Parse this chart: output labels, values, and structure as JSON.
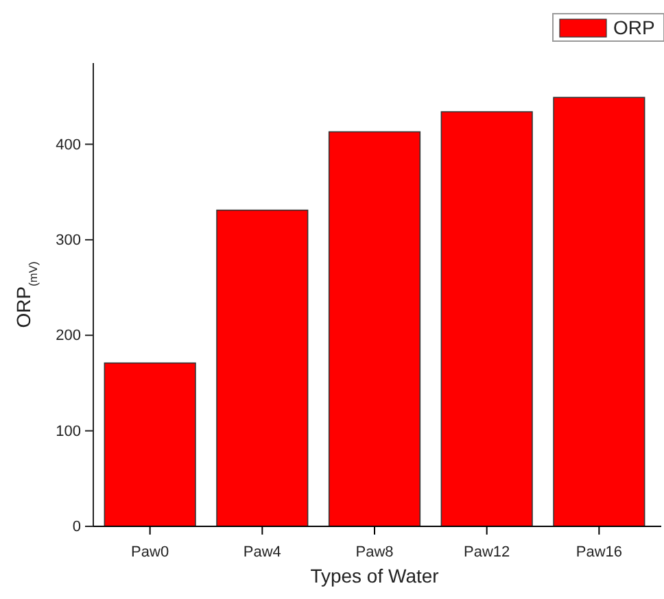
{
  "chart_data": {
    "type": "bar",
    "xlabel": "Types of Water",
    "ylabel": "ORP$_{(mV)}$",
    "categories": [
      "Paw0",
      "Paw4",
      "Paw8",
      "Paw12",
      "Paw16"
    ],
    "series": [
      {
        "name": "ORP",
        "color": "#ff0000",
        "values": [
          171,
          331,
          413,
          434,
          449
        ]
      }
    ],
    "ylim": [
      0,
      485
    ],
    "yticks": [
      0,
      100,
      200,
      300,
      400
    ],
    "legend": "top right",
    "grid": false
  }
}
